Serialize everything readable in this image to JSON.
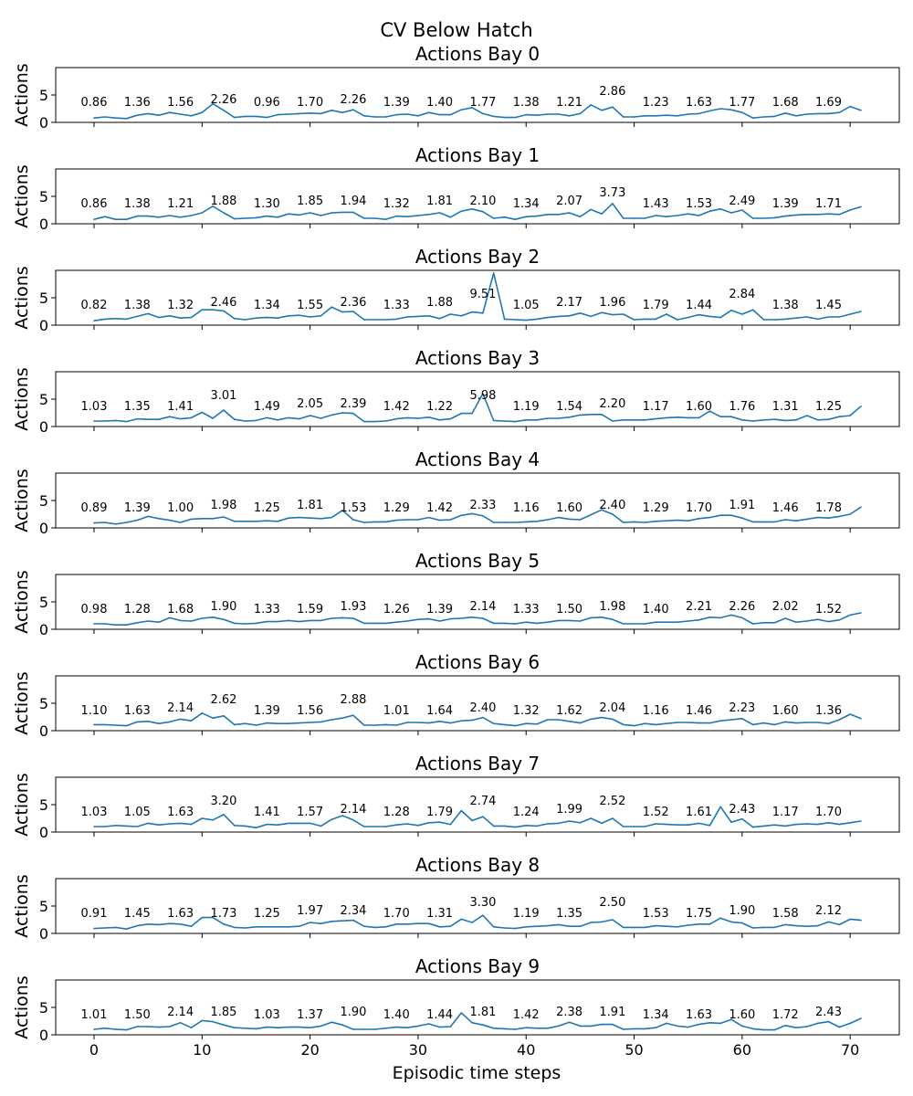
{
  "figure": {
    "suptitle": "CV Below Hatch",
    "xlabel": "Episodic time steps",
    "ylabel": "Actions",
    "x_ticks": [
      "0",
      "10",
      "20",
      "30",
      "40",
      "50",
      "60",
      "70"
    ],
    "y_ticks": [
      "0",
      "5"
    ]
  },
  "colors": {
    "line": "#1f77b4",
    "axes": "#000000",
    "background": "#ffffff"
  },
  "chart_data": [
    {
      "type": "line",
      "title": "Actions Bay 0",
      "xlim": [
        -3.55,
        74.55
      ],
      "ylim": [
        0,
        10
      ],
      "annotation_x": [
        0,
        4,
        8,
        12,
        16,
        20,
        24,
        28,
        32,
        36,
        40,
        44,
        48,
        52,
        56,
        60,
        64,
        68
      ],
      "annotations": [
        "0.86",
        "1.36",
        "1.56",
        "2.26",
        "0.96",
        "1.70",
        "2.26",
        "1.39",
        "1.40",
        "1.77",
        "1.38",
        "1.21",
        "2.86",
        "1.23",
        "1.63",
        "1.77",
        "1.68",
        "1.69"
      ],
      "y": [
        0.8,
        1.0,
        0.8,
        0.7,
        1.3,
        1.6,
        1.3,
        1.8,
        1.5,
        1.2,
        1.8,
        3.4,
        2.2,
        0.9,
        1.1,
        1.1,
        0.9,
        1.4,
        1.5,
        1.6,
        1.7,
        1.6,
        2.2,
        1.8,
        2.3,
        1.2,
        1.0,
        1.0,
        1.4,
        1.5,
        1.2,
        1.8,
        1.4,
        1.4,
        2.3,
        2.7,
        1.6,
        1.1,
        0.9,
        0.9,
        1.4,
        1.3,
        1.5,
        1.5,
        1.2,
        1.6,
        3.2,
        2.2,
        2.8,
        1.0,
        1.0,
        1.2,
        1.2,
        1.3,
        1.2,
        1.5,
        1.6,
        2.1,
        2.5,
        2.3,
        1.8,
        0.8,
        1.0,
        1.1,
        1.7,
        1.2,
        1.5,
        1.6,
        1.6,
        1.8,
        2.9,
        2.2
      ]
    },
    {
      "type": "line",
      "title": "Actions Bay 1",
      "xlim": [
        -3.55,
        74.55
      ],
      "ylim": [
        0,
        10
      ],
      "annotation_x": [
        0,
        4,
        8,
        12,
        16,
        20,
        24,
        28,
        32,
        36,
        40,
        44,
        48,
        52,
        56,
        60,
        64,
        68
      ],
      "annotations": [
        "0.86",
        "1.38",
        "1.21",
        "1.88",
        "1.30",
        "1.85",
        "1.94",
        "1.32",
        "1.81",
        "2.10",
        "1.34",
        "2.07",
        "3.73",
        "1.43",
        "1.53",
        "2.49",
        "1.39",
        "1.71"
      ],
      "y": [
        0.8,
        1.3,
        0.8,
        0.8,
        1.4,
        1.4,
        1.2,
        1.5,
        1.2,
        1.5,
        2.0,
        3.2,
        2.0,
        0.9,
        1.0,
        1.1,
        1.4,
        1.2,
        1.8,
        1.6,
        2.0,
        1.5,
        2.0,
        2.1,
        2.1,
        1.0,
        1.0,
        0.8,
        1.4,
        1.3,
        1.5,
        1.7,
        2.0,
        1.2,
        2.3,
        2.7,
        2.2,
        1.0,
        1.2,
        0.8,
        1.3,
        1.4,
        1.7,
        1.7,
        2.0,
        1.3,
        2.6,
        1.8,
        3.7,
        1.0,
        1.0,
        1.0,
        1.5,
        1.3,
        1.5,
        1.8,
        1.5,
        2.3,
        2.7,
        2.0,
        2.5,
        1.0,
        1.0,
        1.1,
        1.4,
        1.6,
        1.7,
        1.7,
        1.8,
        1.7,
        2.5,
        3.1
      ]
    },
    {
      "type": "line",
      "title": "Actions Bay 2",
      "xlim": [
        -3.55,
        74.55
      ],
      "ylim": [
        0,
        10
      ],
      "annotation_x": [
        0,
        4,
        8,
        12,
        16,
        20,
        24,
        28,
        32,
        36,
        40,
        44,
        48,
        52,
        56,
        60,
        64,
        68
      ],
      "annotations": [
        "0.82",
        "1.38",
        "1.32",
        "2.46",
        "1.34",
        "1.55",
        "2.36",
        "1.33",
        "1.88",
        "9.51",
        "1.05",
        "2.17",
        "1.96",
        "1.79",
        "1.44",
        "2.84",
        "1.38",
        "1.45"
      ],
      "y": [
        0.8,
        1.1,
        1.2,
        1.1,
        1.6,
        2.1,
        1.4,
        1.7,
        1.3,
        1.4,
        2.8,
        2.8,
        2.6,
        1.2,
        1.0,
        1.3,
        1.4,
        1.3,
        1.7,
        1.8,
        1.5,
        1.7,
        3.3,
        2.4,
        2.5,
        1.0,
        1.0,
        1.0,
        1.1,
        1.5,
        1.6,
        1.7,
        1.2,
        2.0,
        1.7,
        2.4,
        2.2,
        9.5,
        1.1,
        1.0,
        0.9,
        1.1,
        1.4,
        1.6,
        1.7,
        2.2,
        1.6,
        2.3,
        1.9,
        2.0,
        1.0,
        1.1,
        1.1,
        2.0,
        1.0,
        1.4,
        1.9,
        1.6,
        1.4,
        2.7,
        2.0,
        2.8,
        1.0,
        1.0,
        1.1,
        1.3,
        1.5,
        1.1,
        1.5,
        1.5,
        2.0,
        2.5
      ]
    },
    {
      "type": "line",
      "title": "Actions Bay 3",
      "xlim": [
        -3.55,
        74.55
      ],
      "ylim": [
        0,
        10
      ],
      "annotation_x": [
        0,
        4,
        8,
        12,
        16,
        20,
        24,
        28,
        32,
        36,
        40,
        44,
        48,
        52,
        56,
        60,
        64,
        68
      ],
      "annotations": [
        "1.03",
        "1.35",
        "1.41",
        "3.01",
        "1.49",
        "2.05",
        "2.39",
        "1.42",
        "1.22",
        "5.98",
        "1.19",
        "1.54",
        "2.20",
        "1.17",
        "1.60",
        "1.76",
        "1.31",
        "1.25"
      ],
      "y": [
        1.0,
        1.0,
        1.1,
        0.9,
        1.4,
        1.3,
        1.3,
        1.8,
        1.4,
        1.6,
        2.6,
        1.5,
        3.0,
        1.3,
        1.0,
        1.1,
        1.6,
        1.2,
        1.6,
        1.4,
        2.0,
        1.5,
        2.1,
        2.5,
        2.4,
        0.9,
        0.9,
        1.0,
        1.4,
        1.6,
        1.5,
        1.7,
        1.2,
        1.4,
        2.4,
        2.4,
        6.0,
        1.1,
        1.0,
        0.9,
        1.2,
        1.2,
        1.5,
        1.5,
        1.7,
        2.1,
        2.2,
        2.2,
        1.0,
        1.2,
        1.2,
        1.2,
        1.4,
        1.6,
        1.7,
        1.6,
        1.6,
        2.8,
        1.8,
        1.8,
        1.2,
        1.0,
        1.2,
        1.3,
        1.1,
        1.2,
        2.0,
        1.2,
        1.3,
        1.8,
        2.0,
        3.7
      ]
    },
    {
      "type": "line",
      "title": "Actions Bay 4",
      "xlim": [
        -3.55,
        74.55
      ],
      "ylim": [
        0,
        10
      ],
      "annotation_x": [
        0,
        4,
        8,
        12,
        16,
        20,
        24,
        28,
        32,
        36,
        40,
        44,
        48,
        52,
        56,
        60,
        64,
        68
      ],
      "annotations": [
        "0.89",
        "1.39",
        "1.00",
        "1.98",
        "1.25",
        "1.81",
        "1.53",
        "1.29",
        "1.42",
        "2.33",
        "1.16",
        "1.60",
        "2.40",
        "1.29",
        "1.70",
        "1.91",
        "1.46",
        "1.78"
      ],
      "y": [
        0.9,
        1.0,
        0.7,
        1.0,
        1.4,
        2.1,
        1.7,
        1.4,
        1.0,
        1.6,
        1.7,
        1.7,
        2.0,
        1.2,
        1.2,
        1.2,
        1.3,
        1.2,
        1.8,
        1.9,
        1.8,
        1.7,
        1.9,
        3.2,
        1.5,
        1.0,
        1.1,
        1.1,
        1.4,
        1.5,
        1.5,
        1.9,
        1.4,
        1.5,
        2.3,
        2.6,
        2.2,
        1.0,
        1.0,
        1.0,
        1.1,
        1.2,
        1.5,
        1.9,
        1.6,
        1.5,
        2.4,
        3.3,
        2.5,
        1.0,
        1.1,
        1.0,
        1.2,
        1.3,
        1.4,
        1.3,
        1.7,
        1.9,
        2.3,
        2.3,
        1.8,
        1.1,
        1.1,
        1.1,
        1.5,
        1.3,
        1.6,
        1.9,
        1.8,
        2.1,
        2.5,
        3.8
      ]
    },
    {
      "type": "line",
      "title": "Actions Bay 5",
      "xlim": [
        -3.55,
        74.55
      ],
      "ylim": [
        0,
        10
      ],
      "annotation_x": [
        0,
        4,
        8,
        12,
        16,
        20,
        24,
        28,
        32,
        36,
        40,
        44,
        48,
        52,
        56,
        60,
        64,
        68
      ],
      "annotations": [
        "0.98",
        "1.28",
        "1.68",
        "1.90",
        "1.33",
        "1.59",
        "1.93",
        "1.26",
        "1.39",
        "2.14",
        "1.33",
        "1.50",
        "1.98",
        "1.40",
        "2.21",
        "2.26",
        "2.02",
        "1.52"
      ],
      "y": [
        1.0,
        1.0,
        0.8,
        0.8,
        1.2,
        1.5,
        1.3,
        2.1,
        1.6,
        1.5,
        2.0,
        2.2,
        1.8,
        1.1,
        1.0,
        1.1,
        1.4,
        1.4,
        1.6,
        1.4,
        1.6,
        1.6,
        2.0,
        2.1,
        2.0,
        1.1,
        1.1,
        1.1,
        1.3,
        1.5,
        1.8,
        1.9,
        1.5,
        1.9,
        2.0,
        2.2,
        2.0,
        1.1,
        1.1,
        1.0,
        1.3,
        1.1,
        1.3,
        1.6,
        1.6,
        1.5,
        2.1,
        2.2,
        1.8,
        1.0,
        1.0,
        1.0,
        1.3,
        1.3,
        1.3,
        1.5,
        1.7,
        2.2,
        2.1,
        2.6,
        2.1,
        1.0,
        1.2,
        1.2,
        2.0,
        1.3,
        1.5,
        1.8,
        1.4,
        1.7,
        2.6,
        3.0
      ]
    },
    {
      "type": "line",
      "title": "Actions Bay 6",
      "xlim": [
        -3.55,
        74.55
      ],
      "ylim": [
        0,
        10
      ],
      "annotation_x": [
        0,
        4,
        8,
        12,
        16,
        20,
        24,
        28,
        32,
        36,
        40,
        44,
        48,
        52,
        56,
        60,
        64,
        68
      ],
      "annotations": [
        "1.10",
        "1.63",
        "2.14",
        "2.62",
        "1.39",
        "1.56",
        "2.88",
        "1.01",
        "1.64",
        "2.40",
        "1.32",
        "1.62",
        "2.04",
        "1.16",
        "1.46",
        "2.23",
        "1.60",
        "1.36"
      ],
      "y": [
        1.1,
        1.1,
        1.0,
        0.9,
        1.6,
        1.7,
        1.3,
        1.6,
        2.1,
        1.8,
        3.2,
        2.3,
        2.7,
        1.1,
        1.3,
        1.0,
        1.4,
        1.3,
        1.3,
        1.4,
        1.5,
        1.6,
        2.0,
        2.3,
        2.8,
        1.0,
        1.0,
        1.1,
        1.0,
        1.5,
        1.5,
        1.4,
        1.7,
        1.4,
        1.8,
        1.9,
        2.4,
        1.3,
        1.1,
        0.9,
        1.3,
        1.2,
        2.0,
        2.0,
        1.7,
        1.4,
        2.1,
        2.4,
        2.1,
        1.1,
        0.9,
        1.3,
        1.1,
        1.3,
        1.5,
        1.5,
        1.4,
        1.4,
        1.8,
        2.0,
        2.2,
        1.1,
        1.4,
        1.1,
        1.6,
        1.4,
        1.5,
        1.5,
        1.3,
        2.0,
        3.0,
        2.2
      ]
    },
    {
      "type": "line",
      "title": "Actions Bay 7",
      "xlim": [
        -3.55,
        74.55
      ],
      "ylim": [
        0,
        10
      ],
      "annotation_x": [
        0,
        4,
        8,
        12,
        16,
        20,
        24,
        28,
        32,
        36,
        40,
        44,
        48,
        52,
        56,
        60,
        64,
        68
      ],
      "annotations": [
        "1.03",
        "1.05",
        "1.63",
        "3.20",
        "1.41",
        "1.57",
        "2.14",
        "1.28",
        "1.79",
        "2.74",
        "1.24",
        "1.99",
        "2.52",
        "1.52",
        "1.61",
        "2.43",
        "1.17",
        "1.70"
      ],
      "y": [
        1.0,
        1.0,
        1.2,
        1.1,
        1.0,
        1.6,
        1.3,
        1.5,
        1.6,
        1.4,
        2.5,
        2.2,
        3.2,
        1.2,
        1.1,
        0.8,
        1.4,
        1.3,
        1.6,
        1.6,
        1.6,
        1.1,
        2.3,
        3.0,
        2.2,
        1.0,
        1.0,
        1.0,
        1.3,
        1.5,
        1.2,
        1.7,
        1.8,
        1.4,
        3.9,
        2.1,
        2.8,
        1.1,
        1.1,
        0.9,
        1.2,
        1.1,
        1.5,
        1.6,
        2.0,
        1.7,
        2.5,
        1.6,
        2.5,
        1.0,
        1.0,
        1.0,
        1.5,
        1.4,
        1.3,
        1.3,
        1.6,
        1.2,
        4.6,
        1.8,
        2.4,
        0.9,
        1.1,
        1.3,
        1.1,
        1.4,
        1.5,
        1.4,
        1.7,
        1.4,
        1.7,
        2.0
      ]
    },
    {
      "type": "line",
      "title": "Actions Bay 8",
      "xlim": [
        -3.55,
        74.55
      ],
      "ylim": [
        0,
        10
      ],
      "annotation_x": [
        0,
        4,
        8,
        12,
        16,
        20,
        24,
        28,
        32,
        36,
        40,
        44,
        48,
        52,
        56,
        60,
        64,
        68
      ],
      "annotations": [
        "0.91",
        "1.45",
        "1.63",
        "1.73",
        "1.25",
        "1.97",
        "2.34",
        "1.70",
        "1.31",
        "3.30",
        "1.19",
        "1.35",
        "2.50",
        "1.53",
        "1.75",
        "1.90",
        "1.58",
        "2.12"
      ],
      "y": [
        0.9,
        1.0,
        1.1,
        0.8,
        1.4,
        1.7,
        1.6,
        1.8,
        1.7,
        1.3,
        2.9,
        2.9,
        1.7,
        1.1,
        1.0,
        1.2,
        1.2,
        1.2,
        1.2,
        1.3,
        2.0,
        1.8,
        2.2,
        2.3,
        2.4,
        1.3,
        1.1,
        1.2,
        1.7,
        1.7,
        1.8,
        1.8,
        1.2,
        1.3,
        2.6,
        2.0,
        3.3,
        1.2,
        1.0,
        0.9,
        1.2,
        1.3,
        1.4,
        1.6,
        1.3,
        1.3,
        2.0,
        2.1,
        2.5,
        1.1,
        1.1,
        1.1,
        1.4,
        1.3,
        1.2,
        1.5,
        1.7,
        1.7,
        2.8,
        2.1,
        1.9,
        1.0,
        1.1,
        1.1,
        1.6,
        1.4,
        1.3,
        1.4,
        2.1,
        1.6,
        2.6,
        2.4
      ]
    },
    {
      "type": "line",
      "title": "Actions Bay 9",
      "xlim": [
        -3.55,
        74.55
      ],
      "ylim": [
        0,
        10
      ],
      "annotation_x": [
        0,
        4,
        8,
        12,
        16,
        20,
        24,
        28,
        32,
        36,
        40,
        44,
        48,
        52,
        56,
        60,
        64,
        68
      ],
      "annotations": [
        "1.01",
        "1.50",
        "2.14",
        "1.85",
        "1.03",
        "1.37",
        "1.90",
        "1.40",
        "1.44",
        "1.81",
        "1.42",
        "2.38",
        "1.91",
        "1.34",
        "1.63",
        "1.60",
        "1.72",
        "2.43"
      ],
      "y": [
        1.0,
        1.2,
        1.0,
        0.9,
        1.5,
        1.5,
        1.4,
        1.5,
        2.2,
        1.3,
        2.6,
        2.4,
        1.8,
        1.3,
        1.2,
        1.1,
        1.4,
        1.3,
        1.4,
        1.4,
        1.3,
        1.6,
        2.3,
        1.8,
        1.0,
        1.0,
        1.0,
        1.2,
        1.4,
        1.3,
        1.6,
        2.0,
        1.4,
        1.5,
        4.0,
        2.2,
        1.8,
        1.2,
        1.1,
        1.0,
        1.3,
        1.2,
        1.2,
        1.6,
        2.3,
        1.6,
        1.6,
        1.9,
        1.9,
        1.0,
        1.1,
        1.1,
        1.3,
        2.1,
        1.6,
        1.4,
        1.9,
        2.2,
        2.1,
        2.8,
        1.6,
        1.1,
        0.9,
        0.9,
        1.7,
        1.3,
        1.5,
        2.1,
        2.4,
        1.4,
        2.1,
        3.0
      ]
    }
  ]
}
